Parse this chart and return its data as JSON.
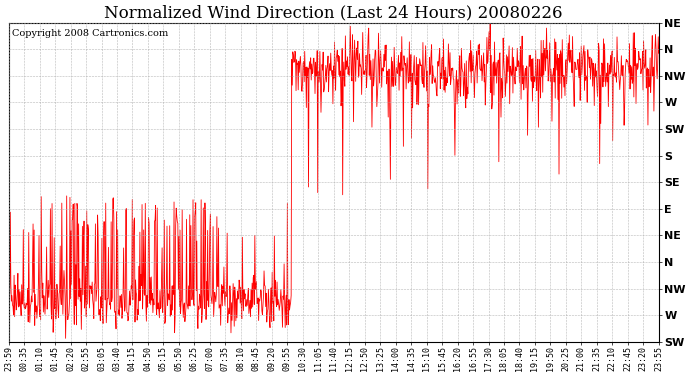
{
  "title": "Normalized Wind Direction (Last 24 Hours) 20080226",
  "copyright_text": "Copyright 2008 Cartronics.com",
  "background_color": "#ffffff",
  "line_color": "#ff0000",
  "grid_color": "#b0b0b0",
  "ytick_labels_bottom_to_top": [
    "SW",
    "W",
    "NW",
    "N",
    "NE",
    "E",
    "SE",
    "S",
    "SW",
    "W",
    "NW",
    "N",
    "NE"
  ],
  "xtick_labels": [
    "23:59",
    "00:35",
    "01:10",
    "01:45",
    "02:20",
    "02:55",
    "03:05",
    "03:40",
    "04:15",
    "04:50",
    "05:15",
    "05:50",
    "06:25",
    "07:00",
    "07:35",
    "08:10",
    "08:45",
    "09:20",
    "09:55",
    "10:30",
    "11:05",
    "11:40",
    "12:15",
    "12:50",
    "13:25",
    "14:00",
    "14:35",
    "15:10",
    "15:45",
    "16:20",
    "16:55",
    "17:30",
    "18:05",
    "18:40",
    "19:15",
    "19:50",
    "20:25",
    "21:00",
    "21:35",
    "22:10",
    "22:45",
    "23:20",
    "23:55"
  ],
  "title_fontsize": 12,
  "copyright_fontsize": 7,
  "xtick_fontsize": 6,
  "ytick_fontsize": 8,
  "figsize": [
    6.9,
    3.75
  ],
  "dpi": 100
}
